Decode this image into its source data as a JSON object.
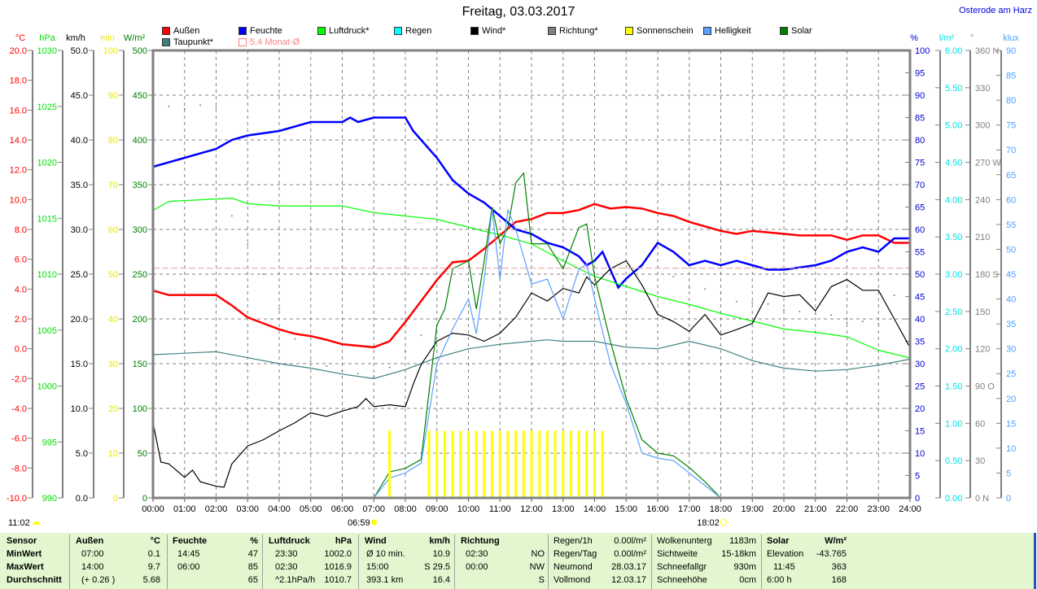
{
  "header": {
    "title": "Freitag, 03.03.2017",
    "station": "Osterode am Harz"
  },
  "legend": [
    {
      "label": "Außen",
      "color": "#ff0000"
    },
    {
      "label": "Feuchte",
      "color": "#0000ff"
    },
    {
      "label": "Luftdruck*",
      "color": "#00ff00"
    },
    {
      "label": "Regen",
      "color": "#00ffff"
    },
    {
      "label": "Wind*",
      "color": "#000000"
    },
    {
      "label": "Richtung*",
      "color": "#808080"
    },
    {
      "label": "Sonnenschein",
      "color": "#ffff00"
    },
    {
      "label": "Helligkeit",
      "color": "#5aa0ff"
    },
    {
      "label": "Solar",
      "color": "#008000"
    },
    {
      "label": "Taupunkt*",
      "color": "#408080"
    },
    {
      "label": "5.4 Monat-Ø",
      "color": "#ff8080"
    }
  ],
  "sun": {
    "sunrise": "06:59",
    "sunset": "18:02",
    "sunshine_duration": "11:02"
  },
  "chart_data": {
    "type": "line",
    "x_range": [
      "00:00",
      "24:00"
    ],
    "x_ticks": [
      "00:00",
      "01:00",
      "02:00",
      "03:00",
      "04:00",
      "05:00",
      "06:00",
      "07:00",
      "08:00",
      "09:00",
      "10:00",
      "11:00",
      "12:00",
      "13:00",
      "14:00",
      "15:00",
      "16:00",
      "17:00",
      "18:00",
      "19:00",
      "20:00",
      "21:00",
      "22:00",
      "23:00",
      "24:00"
    ],
    "grid": true,
    "legend_placement": "top",
    "axes": {
      "temp": {
        "unit": "°C",
        "side": "left",
        "range": [
          -10,
          20
        ],
        "color": "#ff0000",
        "ticks": [
          "-10.0",
          "-8.0",
          "-6.0",
          "-4.0",
          "-2.0",
          "0.0",
          "2.0",
          "4.0",
          "6.0",
          "8.0",
          "10.0",
          "12.0",
          "14.0",
          "16.0",
          "18.0",
          "20.0"
        ]
      },
      "pressure": {
        "unit": "hPa",
        "side": "left",
        "range": [
          990,
          1030
        ],
        "color": "#00e000",
        "ticks": [
          "990",
          "995",
          "1000",
          "1005",
          "1010",
          "1015",
          "1020",
          "1025",
          "1030"
        ]
      },
      "wind": {
        "unit": "km/h",
        "side": "left",
        "range": [
          0,
          50
        ],
        "color": "#000000",
        "ticks": [
          "0.0",
          "5.0",
          "10.0",
          "15.0",
          "20.0",
          "25.0",
          "30.0",
          "35.0",
          "40.0",
          "45.0",
          "50.0"
        ]
      },
      "sunmin": {
        "unit": "min",
        "side": "left",
        "range": [
          0,
          100
        ],
        "color": "#e8e800",
        "ticks": [
          "0",
          "10",
          "20",
          "30",
          "40",
          "50",
          "60",
          "70",
          "80",
          "90",
          "100"
        ]
      },
      "solar": {
        "unit": "W/m²",
        "side": "left",
        "range": [
          0,
          500
        ],
        "color": "#008000",
        "ticks": [
          "0",
          "50",
          "100",
          "150",
          "200",
          "250",
          "300",
          "350",
          "400",
          "450",
          "500"
        ]
      },
      "humidity": {
        "unit": "%",
        "side": "right",
        "range": [
          0,
          100
        ],
        "color": "#0000d0",
        "ticks": [
          "0",
          "5",
          "10",
          "15",
          "20",
          "25",
          "30",
          "35",
          "40",
          "45",
          "50",
          "55",
          "60",
          "65",
          "70",
          "75",
          "80",
          "85",
          "90",
          "95",
          "100"
        ]
      },
      "rain": {
        "unit": "l/m²",
        "side": "right",
        "range": [
          0,
          6
        ],
        "color": "#00e0e0",
        "ticks": [
          "0.00",
          "0.50",
          "1.00",
          "1.50",
          "2.00",
          "2.50",
          "3.00",
          "3.50",
          "4.00",
          "4.50",
          "5.00",
          "5.50",
          "6.00"
        ]
      },
      "direction": {
        "unit": "°",
        "side": "right",
        "range": [
          0,
          360
        ],
        "color": "#808080",
        "ticks": [
          "0 N",
          "30",
          "60",
          "90 O",
          "120",
          "150",
          "180 S",
          "210",
          "240",
          "270 W",
          "300",
          "330",
          "360 N"
        ]
      },
      "lux": {
        "unit": "klux",
        "side": "right",
        "range": [
          0,
          90
        ],
        "color": "#4ca0ff",
        "ticks": [
          "0",
          "5",
          "10",
          "15",
          "20",
          "25",
          "30",
          "35",
          "40",
          "45",
          "50",
          "55",
          "60",
          "65",
          "70",
          "75",
          "80",
          "85",
          "90"
        ]
      }
    },
    "series": [
      {
        "name": "Außen",
        "axis": "temp",
        "color": "#ff0000",
        "x": [
          "00:00",
          "00:30",
          "01:00",
          "02:00",
          "02:30",
          "03:00",
          "03:30",
          "04:00",
          "04:30",
          "05:00",
          "05:30",
          "06:00",
          "06:30",
          "07:00",
          "07:30",
          "08:00",
          "08:30",
          "09:00",
          "09:30",
          "10:00",
          "10:30",
          "11:00",
          "11:30",
          "12:00",
          "12:30",
          "13:00",
          "13:30",
          "14:00",
          "14:30",
          "15:00",
          "15:30",
          "16:00",
          "16:30",
          "17:00",
          "17:30",
          "18:00",
          "18:30",
          "19:00",
          "19:30",
          "20:00",
          "20:30",
          "21:00",
          "21:30",
          "22:00",
          "22:30",
          "23:00",
          "23:30",
          "24:00"
        ],
        "y": [
          3.9,
          3.6,
          3.6,
          3.6,
          2.9,
          2.1,
          1.7,
          1.3,
          1.0,
          0.85,
          0.6,
          0.3,
          0.2,
          0.1,
          0.5,
          1.8,
          3.2,
          4.6,
          5.8,
          5.9,
          6.7,
          7.6,
          8.5,
          8.7,
          9.1,
          9.1,
          9.3,
          9.7,
          9.4,
          9.5,
          9.4,
          9.1,
          8.9,
          8.5,
          8.2,
          7.9,
          7.7,
          7.9,
          7.8,
          7.7,
          7.6,
          7.6,
          7.6,
          7.3,
          7.6,
          7.6,
          7.1,
          7.1
        ]
      },
      {
        "name": "Taupunkt*",
        "axis": "temp",
        "color": "#408080",
        "x": [
          "00:00",
          "01:00",
          "02:00",
          "03:00",
          "04:00",
          "05:00",
          "06:00",
          "07:00",
          "08:00",
          "09:00",
          "10:00",
          "11:00",
          "12:00",
          "12:30",
          "13:00",
          "14:00",
          "15:00",
          "16:00",
          "17:00",
          "18:00",
          "19:00",
          "20:00",
          "21:00",
          "22:00",
          "23:00",
          "24:00"
        ],
        "y": [
          -0.4,
          -0.3,
          -0.2,
          -0.6,
          -1.0,
          -1.3,
          -1.7,
          -2.0,
          -1.4,
          -0.6,
          0.0,
          0.3,
          0.5,
          0.6,
          0.5,
          0.5,
          0.1,
          0.0,
          0.5,
          0.0,
          -0.8,
          -1.3,
          -1.5,
          -1.4,
          -1.1,
          -0.7
        ]
      },
      {
        "name": "Feuchte",
        "axis": "humidity",
        "color": "#0000ff",
        "x": [
          "00:00",
          "00:30",
          "01:00",
          "02:00",
          "02:30",
          "03:00",
          "04:00",
          "05:00",
          "06:00",
          "06:15",
          "06:30",
          "07:00",
          "08:00",
          "08:15",
          "08:30",
          "09:00",
          "09:30",
          "10:00",
          "10:30",
          "11:00",
          "11:30",
          "12:00",
          "12:30",
          "13:00",
          "13:30",
          "13:45",
          "14:00",
          "14:15",
          "14:45",
          "15:00",
          "15:30",
          "16:00",
          "16:30",
          "17:00",
          "17:30",
          "18:00",
          "18:30",
          "19:00",
          "19:30",
          "20:00",
          "21:00",
          "21:30",
          "22:00",
          "22:30",
          "23:00",
          "23:30",
          "24:00"
        ],
        "y": [
          74,
          75,
          76,
          78,
          80,
          81,
          82,
          84,
          84,
          85,
          84,
          85,
          85,
          82,
          80,
          76,
          71,
          68,
          66,
          63,
          60,
          59,
          57,
          56,
          54,
          52,
          53,
          55,
          47,
          49,
          52,
          57,
          55,
          52,
          53,
          52,
          53,
          52,
          51,
          51,
          52,
          53,
          55,
          56,
          55,
          58,
          58
        ]
      },
      {
        "name": "Luftdruck*",
        "axis": "pressure",
        "color": "#00ff00",
        "x": [
          "00:00",
          "00:30",
          "02:30",
          "03:00",
          "04:00",
          "06:00",
          "07:00",
          "08:00",
          "09:00",
          "10:00",
          "11:00",
          "12:00",
          "13:00",
          "14:00",
          "15:00",
          "16:00",
          "17:00",
          "18:00",
          "19:00",
          "20:00",
          "21:00",
          "22:00",
          "23:00",
          "24:00"
        ],
        "y": [
          1015.7,
          1016.5,
          1016.8,
          1016.3,
          1016.1,
          1016.1,
          1015.5,
          1015.2,
          1014.9,
          1014.2,
          1013.5,
          1012.7,
          1011.2,
          1009.8,
          1008.9,
          1008.0,
          1007.3,
          1006.5,
          1005.8,
          1005.1,
          1004.8,
          1004.4,
          1003.2,
          1002.5
        ]
      },
      {
        "name": "Wind*",
        "axis": "wind",
        "color": "#000000",
        "x": [
          "00:00",
          "00:15",
          "00:30",
          "01:00",
          "01:15",
          "01:30",
          "02:00",
          "02:15",
          "02:30",
          "03:00",
          "03:30",
          "04:00",
          "04:30",
          "05:00",
          "05:30",
          "06:00",
          "06:30",
          "06:45",
          "07:00",
          "07:30",
          "08:00",
          "08:15",
          "08:30",
          "09:00",
          "09:30",
          "10:00",
          "10:30",
          "11:00",
          "11:30",
          "12:00",
          "12:30",
          "13:00",
          "13:30",
          "13:45",
          "14:00",
          "14:30",
          "15:00",
          "15:30",
          "16:00",
          "16:30",
          "17:00",
          "17:30",
          "18:00",
          "18:30",
          "19:00",
          "19:30",
          "20:00",
          "20:30",
          "21:00",
          "21:30",
          "22:00",
          "22:30",
          "23:00",
          "23:30",
          "24:00"
        ],
        "y": [
          8.4,
          4.0,
          3.8,
          2.3,
          3.1,
          1.8,
          1.3,
          1.2,
          3.8,
          5.8,
          6.5,
          7.5,
          8.4,
          9.5,
          9.1,
          9.7,
          10.2,
          11.1,
          10.2,
          10.4,
          10.2,
          12.7,
          14.9,
          17.5,
          18.4,
          18.2,
          17.5,
          18.4,
          20.2,
          22.9,
          22.0,
          23.4,
          22.9,
          24.7,
          23.8,
          25.6,
          26.5,
          23.8,
          20.5,
          19.7,
          18.6,
          20.5,
          18.2,
          18.8,
          19.5,
          22.9,
          22.5,
          22.7,
          20.9,
          23.6,
          24.4,
          23.2,
          23.2,
          20.0,
          16.8
        ]
      },
      {
        "name": "Solar",
        "axis": "solar",
        "color": "#008000",
        "x": [
          "07:00",
          "07:30",
          "08:00",
          "08:30",
          "09:00",
          "09:15",
          "09:30",
          "10:00",
          "10:15",
          "10:30",
          "10:45",
          "11:00",
          "11:15",
          "11:30",
          "11:45",
          "12:00",
          "12:30",
          "13:00",
          "13:30",
          "13:45",
          "14:00",
          "14:30",
          "15:00",
          "15:30",
          "16:00",
          "16:30",
          "17:00",
          "17:30",
          "18:00"
        ],
        "y": [
          0,
          29,
          33,
          43,
          193,
          211,
          256,
          265,
          211,
          265,
          325,
          284,
          302,
          352,
          363,
          284,
          284,
          256,
          302,
          306,
          247,
          175,
          111,
          65,
          50,
          47,
          34,
          18,
          0
        ]
      },
      {
        "name": "Helligkeit",
        "axis": "lux",
        "color": "#5aa0ff",
        "x": [
          "07:00",
          "07:30",
          "08:00",
          "08:30",
          "09:00",
          "09:30",
          "10:00",
          "10:15",
          "10:30",
          "10:45",
          "11:00",
          "11:15",
          "11:30",
          "12:00",
          "12:30",
          "13:00",
          "13:30",
          "13:45",
          "14:00",
          "14:30",
          "15:00",
          "15:30",
          "16:00",
          "16:30",
          "17:00",
          "17:30",
          "18:00"
        ],
        "y": [
          0,
          4,
          5,
          7,
          27,
          34,
          40,
          33,
          44,
          58,
          44,
          58,
          54,
          43,
          44,
          36,
          46,
          47,
          40,
          27,
          19,
          9,
          8,
          7.5,
          5,
          2.5,
          0
        ]
      },
      {
        "name": "Richtung*",
        "axis": "direction",
        "type": "scatter",
        "color": "#808080",
        "x": [
          "00:30",
          "01:00",
          "01:30",
          "02:00",
          "02:30",
          "03:00",
          "03:30",
          "04:00",
          "04:30",
          "05:00",
          "05:30",
          "06:00",
          "06:30",
          "07:00",
          "07:30",
          "08:00",
          "08:30",
          "16:30",
          "17:00",
          "17:30",
          "18:00",
          "18:30",
          "19:00",
          "19:30",
          "20:00",
          "20:30",
          "21:00",
          "21:30",
          "22:00",
          "22:30",
          "23:00",
          "23:30"
        ],
        "y": [
          315,
          313,
          316,
          314,
          227,
          204,
          180,
          152,
          128,
          110,
          106,
          102,
          100,
          98,
          105,
          118,
          131,
          178,
          169,
          168,
          165,
          158,
          157,
          156,
          151,
          150,
          148,
          147,
          141,
          142,
          140,
          163
        ]
      },
      {
        "name": "Sonnenschein",
        "axis": "sunmin",
        "type": "bar",
        "color": "#ffff00",
        "x": [
          "07:30",
          "08:45",
          "09:00",
          "09:15",
          "09:30",
          "09:45",
          "10:00",
          "10:15",
          "10:30",
          "10:45",
          "11:00",
          "11:15",
          "11:30",
          "11:45",
          "12:00",
          "12:15",
          "12:30",
          "12:45",
          "13:00",
          "13:15",
          "13:30",
          "13:45",
          "14:00",
          "14:15"
        ],
        "y": [
          15,
          15,
          15,
          15,
          15,
          15,
          15,
          15,
          15,
          15,
          15,
          15,
          15,
          15,
          15,
          15,
          15,
          15,
          15,
          15,
          15,
          15,
          15,
          15
        ]
      },
      {
        "name": "5.4 Monat-Ø",
        "axis": "temp",
        "type": "hline",
        "color": "#ff8080",
        "y": [
          5.4
        ]
      }
    ]
  },
  "table": {
    "headers": {
      "sensor": "Sensor",
      "aussen": "Außen",
      "aussen_unit": "°C",
      "feuchte": "Feuchte",
      "feuchte_unit": "%",
      "luftdruck": "Luftdruck",
      "luftdruck_unit": "hPa",
      "wind": "Wind",
      "wind_unit": "km/h",
      "richtung": "Richtung",
      "solar": "Solar",
      "solar_unit": "W/m²"
    },
    "row_labels": [
      "MinWert",
      "MaxWert",
      "Durchschnitt"
    ],
    "aussen": [
      [
        "07:00",
        "0.1"
      ],
      [
        "14:00",
        "9.7"
      ],
      [
        "(+ 0.26 )",
        "5.68"
      ]
    ],
    "feuchte": [
      [
        "14:45",
        "47"
      ],
      [
        "06:00",
        "85"
      ],
      [
        "",
        "65"
      ]
    ],
    "luftdruck": [
      [
        "23:30",
        "1002.0"
      ],
      [
        "02:30",
        "1016.9"
      ],
      [
        "^2.1hPa/h",
        "1010.7"
      ]
    ],
    "wind": [
      [
        "Ø 10 min.",
        "10.9"
      ],
      [
        "15:00",
        "S 29.5"
      ],
      [
        "393.1 km",
        "16.4"
      ]
    ],
    "richtung": [
      [
        "02:30",
        "NO"
      ],
      [
        "00:00",
        "NW"
      ],
      [
        "",
        "S"
      ]
    ],
    "regen": [
      [
        "Regen/1h",
        "0.00l/m²"
      ],
      [
        "Regen/Tag",
        "0.00l/m²"
      ],
      [
        "Neumond",
        "28.03.17"
      ],
      [
        "Vollmond",
        "12.03.17"
      ]
    ],
    "wolken": [
      [
        "Wolkenunterg",
        "1183m"
      ],
      [
        "Sichtweite",
        "15-18km"
      ],
      [
        "Schneefallgr",
        "930m"
      ],
      [
        "Schneehöhe",
        "0cm"
      ]
    ],
    "solar": [
      [
        "Elevation",
        "-43.765"
      ],
      [
        "11:45",
        "363"
      ],
      [
        "6:00 h",
        "168"
      ]
    ]
  }
}
